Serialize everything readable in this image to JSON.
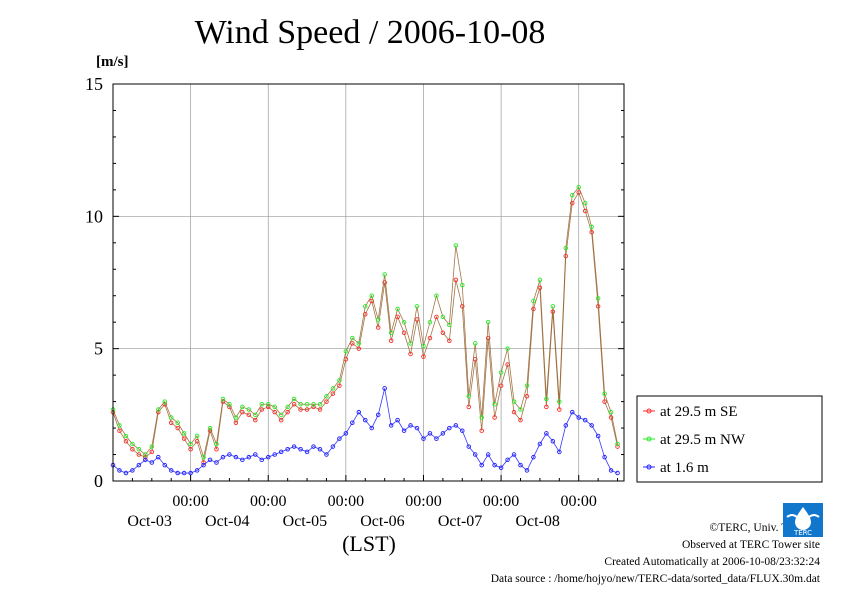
{
  "header": {
    "title": "Wind Speed / 2006-10-08",
    "unit": "[m/s]"
  },
  "footer": {
    "copyright": "©TERC, Univ. Tsukuba",
    "observed": "Observed at TERC Tower site",
    "created": "Created Automatically at 2006-10-08/23:32:24",
    "source": "Data source : /home/hojyo/new/TERC-data/sorted_data/FLUX.30m.dat",
    "logo_text": "TERC"
  },
  "colors": {
    "se": "#ff2a2a",
    "nw": "#22ee22",
    "low": "#2020ff",
    "connector": "#996633",
    "grid": "#999999"
  },
  "chart_data": {
    "type": "line",
    "title": "Wind Speed / 2006-10-08",
    "xlabel": "(LST)",
    "ylabel": "[m/s]",
    "ylim": [
      0,
      15
    ],
    "yticks": [
      "0",
      "5",
      "10",
      "15"
    ],
    "xlim": [
      0,
      144
    ],
    "xticks": [
      {
        "x": 24,
        "time": "00:00",
        "date": "Oct-03"
      },
      {
        "x": 48,
        "time": "00:00",
        "date": "Oct-04"
      },
      {
        "x": 72,
        "time": "00:00",
        "date": "Oct-05"
      },
      {
        "x": 96,
        "time": "00:00",
        "date": "Oct-06"
      },
      {
        "x": 120,
        "time": "00:00",
        "date": "Oct-07"
      },
      {
        "x": 144,
        "time": "00:00",
        "date": "Oct-08"
      }
    ],
    "grid": true,
    "legend_position": "right",
    "series": [
      {
        "name": "at 29.5 m SE",
        "color": "#ff2a2a",
        "points": [
          [
            0,
            2.6
          ],
          [
            2,
            1.9
          ],
          [
            4,
            1.5
          ],
          [
            6,
            1.2
          ],
          [
            8,
            1.0
          ],
          [
            10,
            0.9
          ],
          [
            12,
            1.1
          ],
          [
            14,
            2.6
          ],
          [
            16,
            2.9
          ],
          [
            18,
            2.2
          ],
          [
            20,
            2.0
          ],
          [
            22,
            1.6
          ],
          [
            24,
            1.2
          ],
          [
            26,
            1.5
          ],
          [
            28,
            0.7
          ],
          [
            30,
            1.9
          ],
          [
            32,
            1.2
          ],
          [
            34,
            3.0
          ],
          [
            36,
            2.8
          ],
          [
            38,
            2.2
          ],
          [
            40,
            2.6
          ],
          [
            42,
            2.5
          ],
          [
            44,
            2.3
          ],
          [
            46,
            2.7
          ],
          [
            48,
            2.8
          ],
          [
            50,
            2.6
          ],
          [
            52,
            2.3
          ],
          [
            54,
            2.6
          ],
          [
            56,
            2.9
          ],
          [
            58,
            2.7
          ],
          [
            60,
            2.7
          ],
          [
            62,
            2.8
          ],
          [
            64,
            2.7
          ],
          [
            66,
            3.0
          ],
          [
            68,
            3.3
          ],
          [
            70,
            3.6
          ],
          [
            72,
            4.6
          ],
          [
            74,
            5.2
          ],
          [
            76,
            5.0
          ],
          [
            78,
            6.3
          ],
          [
            80,
            6.8
          ],
          [
            82,
            5.8
          ],
          [
            84,
            7.5
          ],
          [
            86,
            5.3
          ],
          [
            88,
            6.2
          ],
          [
            90,
            5.6
          ],
          [
            92,
            4.8
          ],
          [
            94,
            6.1
          ],
          [
            96,
            4.7
          ],
          [
            98,
            5.4
          ],
          [
            100,
            6.2
          ],
          [
            102,
            5.6
          ],
          [
            104,
            5.3
          ],
          [
            106,
            7.6
          ],
          [
            108,
            6.6
          ],
          [
            110,
            2.8
          ],
          [
            112,
            4.6
          ],
          [
            114,
            1.9
          ],
          [
            116,
            5.4
          ],
          [
            118,
            2.4
          ],
          [
            120,
            3.6
          ],
          [
            122,
            4.4
          ],
          [
            124,
            2.6
          ],
          [
            126,
            2.3
          ],
          [
            128,
            3.2
          ],
          [
            130,
            6.5
          ],
          [
            132,
            7.3
          ],
          [
            134,
            2.8
          ],
          [
            136,
            6.4
          ],
          [
            138,
            2.7
          ],
          [
            140,
            8.5
          ],
          [
            142,
            10.5
          ],
          [
            144,
            10.9
          ],
          [
            146,
            10.2
          ],
          [
            148,
            9.4
          ],
          [
            150,
            6.6
          ],
          [
            152,
            3.0
          ],
          [
            154,
            2.4
          ],
          [
            156,
            1.3
          ]
        ]
      },
      {
        "name": "at 29.5 m NW",
        "color": "#22ee22",
        "points": [
          [
            0,
            2.7
          ],
          [
            2,
            2.1
          ],
          [
            4,
            1.7
          ],
          [
            6,
            1.4
          ],
          [
            8,
            1.2
          ],
          [
            10,
            1.0
          ],
          [
            12,
            1.3
          ],
          [
            14,
            2.7
          ],
          [
            16,
            3.0
          ],
          [
            18,
            2.4
          ],
          [
            20,
            2.2
          ],
          [
            22,
            1.8
          ],
          [
            24,
            1.4
          ],
          [
            26,
            1.7
          ],
          [
            28,
            0.9
          ],
          [
            30,
            2.0
          ],
          [
            32,
            1.4
          ],
          [
            34,
            3.1
          ],
          [
            36,
            2.9
          ],
          [
            38,
            2.4
          ],
          [
            40,
            2.8
          ],
          [
            42,
            2.7
          ],
          [
            44,
            2.5
          ],
          [
            46,
            2.9
          ],
          [
            48,
            2.9
          ],
          [
            50,
            2.8
          ],
          [
            52,
            2.5
          ],
          [
            54,
            2.8
          ],
          [
            56,
            3.1
          ],
          [
            58,
            2.9
          ],
          [
            60,
            2.9
          ],
          [
            62,
            2.9
          ],
          [
            64,
            2.9
          ],
          [
            66,
            3.2
          ],
          [
            68,
            3.5
          ],
          [
            70,
            3.8
          ],
          [
            72,
            4.9
          ],
          [
            74,
            5.4
          ],
          [
            76,
            5.2
          ],
          [
            78,
            6.6
          ],
          [
            80,
            7.0
          ],
          [
            82,
            6.1
          ],
          [
            84,
            7.8
          ],
          [
            86,
            5.6
          ],
          [
            88,
            6.5
          ],
          [
            90,
            6.0
          ],
          [
            92,
            5.2
          ],
          [
            94,
            6.6
          ],
          [
            96,
            5.1
          ],
          [
            98,
            6.0
          ],
          [
            100,
            7.0
          ],
          [
            102,
            6.2
          ],
          [
            104,
            5.9
          ],
          [
            106,
            8.9
          ],
          [
            108,
            7.4
          ],
          [
            110,
            3.2
          ],
          [
            112,
            5.2
          ],
          [
            114,
            2.4
          ],
          [
            116,
            6.0
          ],
          [
            118,
            2.9
          ],
          [
            120,
            4.1
          ],
          [
            122,
            5.0
          ],
          [
            124,
            3.0
          ],
          [
            126,
            2.7
          ],
          [
            128,
            3.6
          ],
          [
            130,
            6.8
          ],
          [
            132,
            7.6
          ],
          [
            134,
            3.1
          ],
          [
            136,
            6.6
          ],
          [
            138,
            3.0
          ],
          [
            140,
            8.8
          ],
          [
            142,
            10.8
          ],
          [
            144,
            11.1
          ],
          [
            146,
            10.5
          ],
          [
            148,
            9.6
          ],
          [
            150,
            6.9
          ],
          [
            152,
            3.3
          ],
          [
            154,
            2.6
          ],
          [
            156,
            1.4
          ]
        ]
      },
      {
        "name": "at 1.6 m",
        "color": "#2020ff",
        "points": [
          [
            0,
            0.6
          ],
          [
            2,
            0.4
          ],
          [
            4,
            0.3
          ],
          [
            6,
            0.4
          ],
          [
            8,
            0.6
          ],
          [
            10,
            0.8
          ],
          [
            12,
            0.7
          ],
          [
            14,
            0.9
          ],
          [
            16,
            0.6
          ],
          [
            18,
            0.4
          ],
          [
            20,
            0.3
          ],
          [
            22,
            0.3
          ],
          [
            24,
            0.3
          ],
          [
            26,
            0.4
          ],
          [
            28,
            0.6
          ],
          [
            30,
            0.8
          ],
          [
            32,
            0.7
          ],
          [
            34,
            0.9
          ],
          [
            36,
            1.0
          ],
          [
            38,
            0.9
          ],
          [
            40,
            0.8
          ],
          [
            42,
            0.9
          ],
          [
            44,
            1.0
          ],
          [
            46,
            0.8
          ],
          [
            48,
            0.9
          ],
          [
            50,
            1.0
          ],
          [
            52,
            1.1
          ],
          [
            54,
            1.2
          ],
          [
            56,
            1.3
          ],
          [
            58,
            1.2
          ],
          [
            60,
            1.1
          ],
          [
            62,
            1.3
          ],
          [
            64,
            1.2
          ],
          [
            66,
            1.0
          ],
          [
            68,
            1.3
          ],
          [
            70,
            1.6
          ],
          [
            72,
            1.8
          ],
          [
            74,
            2.2
          ],
          [
            76,
            2.6
          ],
          [
            78,
            2.3
          ],
          [
            80,
            2.0
          ],
          [
            82,
            2.5
          ],
          [
            84,
            3.5
          ],
          [
            86,
            2.1
          ],
          [
            88,
            2.3
          ],
          [
            90,
            1.9
          ],
          [
            92,
            2.1
          ],
          [
            94,
            2.0
          ],
          [
            96,
            1.6
          ],
          [
            98,
            1.8
          ],
          [
            100,
            1.6
          ],
          [
            102,
            1.8
          ],
          [
            104,
            2.0
          ],
          [
            106,
            2.1
          ],
          [
            108,
            1.9
          ],
          [
            110,
            1.3
          ],
          [
            112,
            1.0
          ],
          [
            114,
            0.6
          ],
          [
            116,
            1.0
          ],
          [
            118,
            0.6
          ],
          [
            120,
            0.5
          ],
          [
            122,
            0.8
          ],
          [
            124,
            1.0
          ],
          [
            126,
            0.6
          ],
          [
            128,
            0.4
          ],
          [
            130,
            0.9
          ],
          [
            132,
            1.4
          ],
          [
            134,
            1.8
          ],
          [
            136,
            1.5
          ],
          [
            138,
            1.1
          ],
          [
            140,
            2.1
          ],
          [
            142,
            2.6
          ],
          [
            144,
            2.4
          ],
          [
            146,
            2.3
          ],
          [
            148,
            2.1
          ],
          [
            150,
            1.7
          ],
          [
            152,
            0.9
          ],
          [
            154,
            0.4
          ],
          [
            156,
            0.3
          ]
        ]
      }
    ]
  }
}
